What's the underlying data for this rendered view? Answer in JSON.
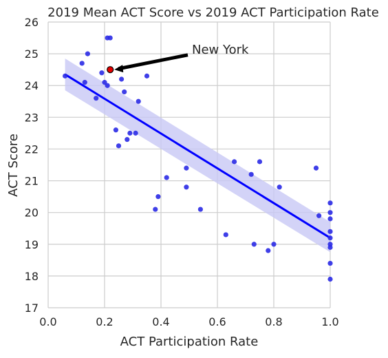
{
  "chart_data": {
    "type": "scatter",
    "title": "2019 Mean ACT Score vs 2019 ACT Participation Rate",
    "xlabel": "ACT Participation Rate",
    "ylabel": "ACT Score",
    "xlim": [
      0.0,
      1.0
    ],
    "ylim": [
      17,
      26
    ],
    "xticks": [
      "0.0",
      "0.2",
      "0.4",
      "0.6",
      "0.8",
      "1.0"
    ],
    "yticks": [
      "17",
      "18",
      "19",
      "20",
      "21",
      "22",
      "23",
      "24",
      "25",
      "26"
    ],
    "grid": true,
    "colors": {
      "points": "#2a2ae6",
      "line": "#0000ff",
      "band": "#c8c8f5",
      "highlight": "#e60000",
      "grid": "#cccccc"
    },
    "regression": {
      "x": [
        0.06,
        1.0
      ],
      "y": [
        24.35,
        19.2
      ],
      "ci_start": [
        23.85,
        24.85
      ],
      "ci_end": [
        18.75,
        19.7
      ]
    },
    "highlight": {
      "label": "New York",
      "x": 0.22,
      "y": 24.5,
      "label_x": 0.5,
      "label_y": 25.05
    },
    "points": [
      [
        0.06,
        24.3
      ],
      [
        0.12,
        24.7
      ],
      [
        0.13,
        24.1
      ],
      [
        0.14,
        25.0
      ],
      [
        0.17,
        23.6
      ],
      [
        0.19,
        24.4
      ],
      [
        0.2,
        24.1
      ],
      [
        0.21,
        24.0
      ],
      [
        0.21,
        25.5
      ],
      [
        0.22,
        25.5
      ],
      [
        0.24,
        22.6
      ],
      [
        0.25,
        22.1
      ],
      [
        0.26,
        24.2
      ],
      [
        0.27,
        23.8
      ],
      [
        0.28,
        22.3
      ],
      [
        0.29,
        22.5
      ],
      [
        0.31,
        22.5
      ],
      [
        0.32,
        23.5
      ],
      [
        0.35,
        24.3
      ],
      [
        0.38,
        20.1
      ],
      [
        0.39,
        20.5
      ],
      [
        0.42,
        21.1
      ],
      [
        0.49,
        21.4
      ],
      [
        0.49,
        20.8
      ],
      [
        0.54,
        20.1
      ],
      [
        0.63,
        19.3
      ],
      [
        0.66,
        21.6
      ],
      [
        0.72,
        21.2
      ],
      [
        0.73,
        19.0
      ],
      [
        0.75,
        21.6
      ],
      [
        0.78,
        18.8
      ],
      [
        0.8,
        19.0
      ],
      [
        0.82,
        20.8
      ],
      [
        0.95,
        21.4
      ],
      [
        0.96,
        19.9
      ],
      [
        1.0,
        20.3
      ],
      [
        1.0,
        20.0
      ],
      [
        1.0,
        19.8
      ],
      [
        1.0,
        19.4
      ],
      [
        1.0,
        19.2
      ],
      [
        1.0,
        19.0
      ],
      [
        1.0,
        18.9
      ],
      [
        1.0,
        18.4
      ],
      [
        1.0,
        17.9
      ]
    ]
  }
}
